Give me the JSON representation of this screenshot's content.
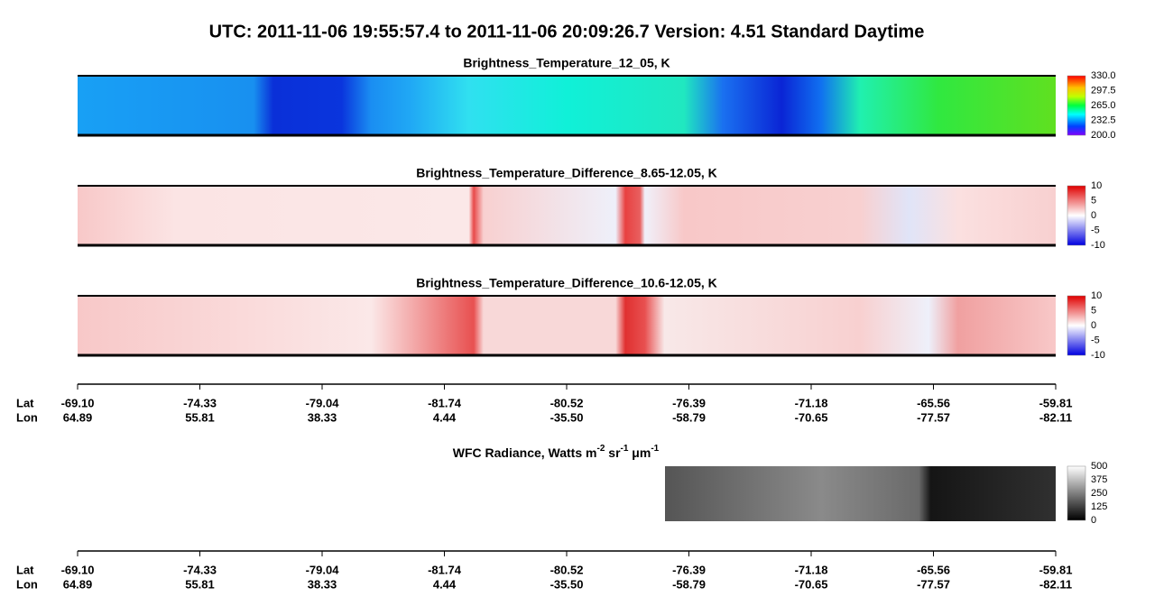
{
  "title": "UTC:  2011-11-06   19:55:57.4  to  2011-11-06   20:09:26.7    Version: 4.51  Standard Daytime",
  "panels": [
    {
      "title": "Brightness_Temperature_12_05, K",
      "colorbar_ticks": [
        "330.0",
        "297.5",
        "265.0",
        "232.5",
        "200.0"
      ]
    },
    {
      "title": "Brightness_Temperature_Difference_8.65-12.05, K",
      "colorbar_ticks": [
        "10",
        "5",
        "0",
        "-5",
        "-10"
      ]
    },
    {
      "title": "Brightness_Temperature_Difference_10.6-12.05, K",
      "colorbar_ticks": [
        "10",
        "5",
        "0",
        "-5",
        "-10"
      ]
    }
  ],
  "wfc": {
    "title_parts": [
      "WFC Radiance, Watts m",
      "-2",
      " sr",
      "-1",
      " μm",
      "-1"
    ],
    "colorbar_ticks": [
      "500",
      "375",
      "250",
      "125",
      "0"
    ]
  },
  "axes": [
    {
      "row_labels": [
        "Lat",
        "Lon"
      ],
      "lat": [
        "-69.10",
        "-74.33",
        "-79.04",
        "-81.74",
        "-80.52",
        "-76.39",
        "-71.18",
        "-65.56",
        "-59.81"
      ],
      "lon": [
        "64.89",
        "55.81",
        "38.33",
        "4.44",
        "-35.50",
        "-58.79",
        "-70.65",
        "-77.57",
        "-82.11"
      ]
    },
    {
      "row_labels": [
        "Lat",
        "Lon"
      ],
      "lat": [
        "-69.10",
        "-74.33",
        "-79.04",
        "-81.74",
        "-80.52",
        "-76.39",
        "-71.18",
        "-65.56",
        "-59.81"
      ],
      "lon": [
        "64.89",
        "55.81",
        "38.33",
        "4.44",
        "-35.50",
        "-58.79",
        "-70.65",
        "-77.57",
        "-82.11"
      ]
    }
  ]
}
